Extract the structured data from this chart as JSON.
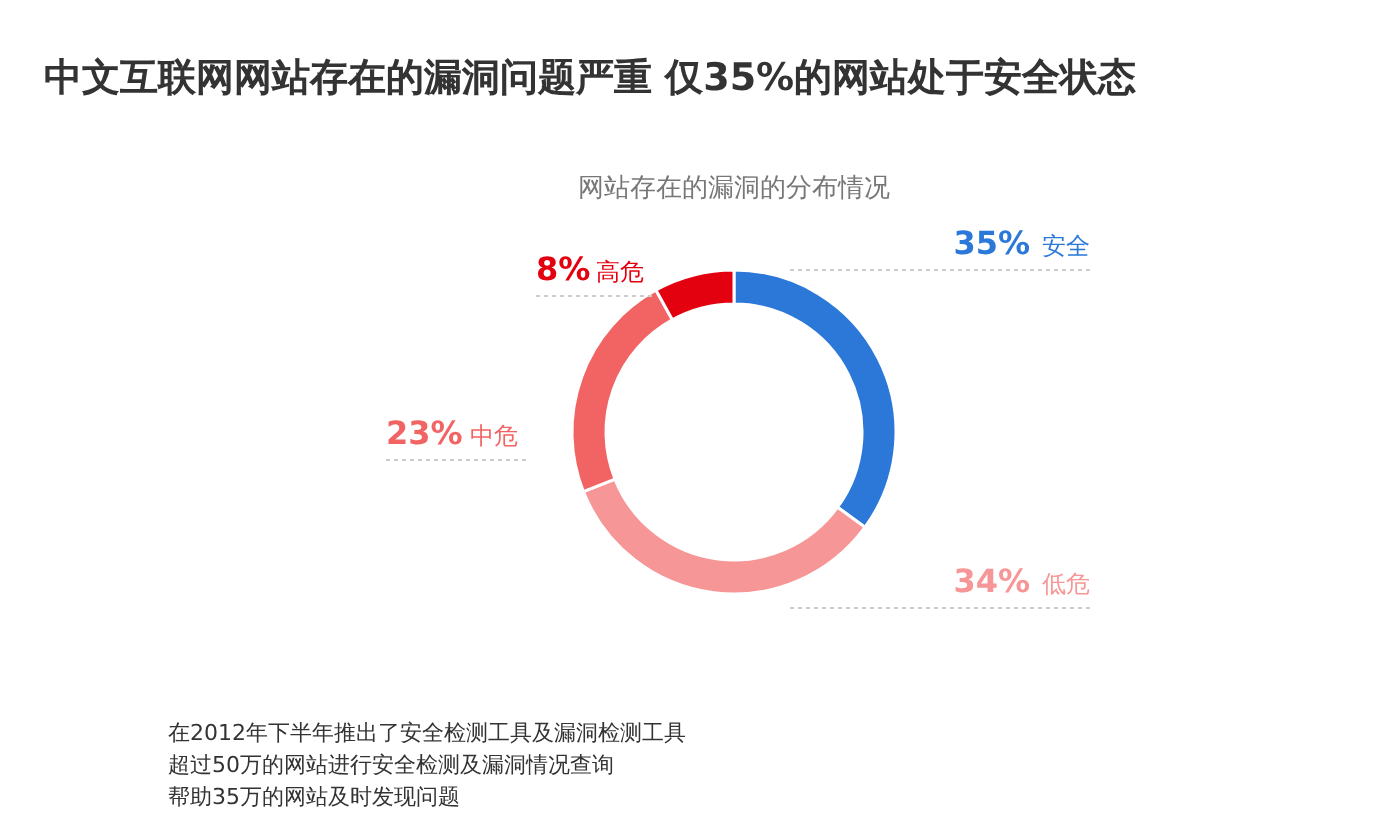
{
  "chart_data": {
    "type": "donut",
    "title": "中文互联网网站存在的漏洞问题严重 仅35%的网站处于安全状态",
    "subtitle": "网站存在的漏洞的分布情况",
    "categories": [
      "安全",
      "低危",
      "中危",
      "高危"
    ],
    "values": [
      35,
      34,
      23,
      8
    ],
    "value_labels": [
      "35%",
      "34%",
      "23%",
      "8%"
    ],
    "colors": [
      "#2b78d8",
      "#f79696",
      "#f26464",
      "#e3000f"
    ],
    "annotations": [
      "在2012年下半年推出了安全检测工具及漏洞检测工具",
      "超过50万的网站进行安全检测及漏洞情况查询",
      "帮助35万的网站及时发现问题"
    ]
  }
}
